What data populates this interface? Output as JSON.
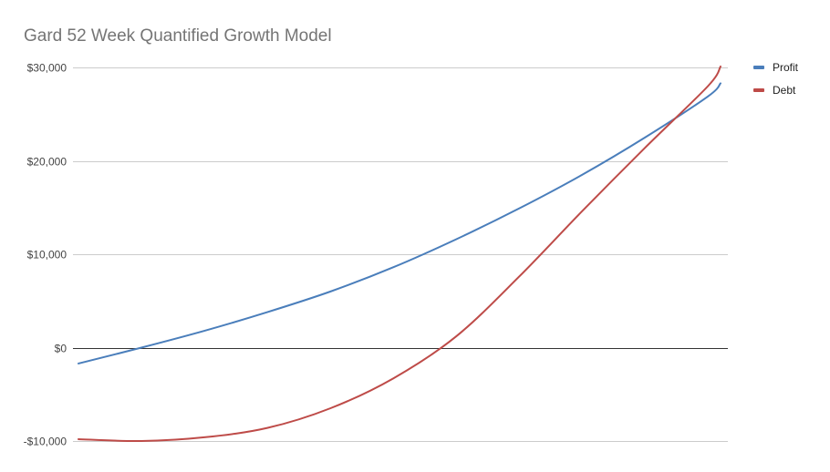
{
  "chart_data": {
    "type": "line",
    "title": "Gard 52 Week Quantified Growth Model",
    "xlabel": "",
    "ylabel": "",
    "x": [
      1,
      6,
      11,
      16,
      21,
      26,
      31,
      36,
      41,
      46,
      51,
      52
    ],
    "ylim": [
      -10000,
      30000
    ],
    "yticks": [
      -10000,
      0,
      10000,
      20000,
      30000
    ],
    "ytick_labels": [
      "-$10,000",
      "$0",
      "$10,000",
      "$20,000",
      "$30,000"
    ],
    "grid": true,
    "legend_position": "right",
    "series": [
      {
        "name": "Profit",
        "color": "#4a7ebb",
        "values": [
          -1700,
          0,
          1800,
          3800,
          6000,
          8600,
          11600,
          14900,
          18500,
          22500,
          26900,
          28300
        ]
      },
      {
        "name": "Debt",
        "color": "#be4b48",
        "values": [
          -9800,
          -10000,
          -9600,
          -8600,
          -6500,
          -3300,
          1200,
          7600,
          14600,
          21400,
          28000,
          30100
        ]
      }
    ]
  }
}
